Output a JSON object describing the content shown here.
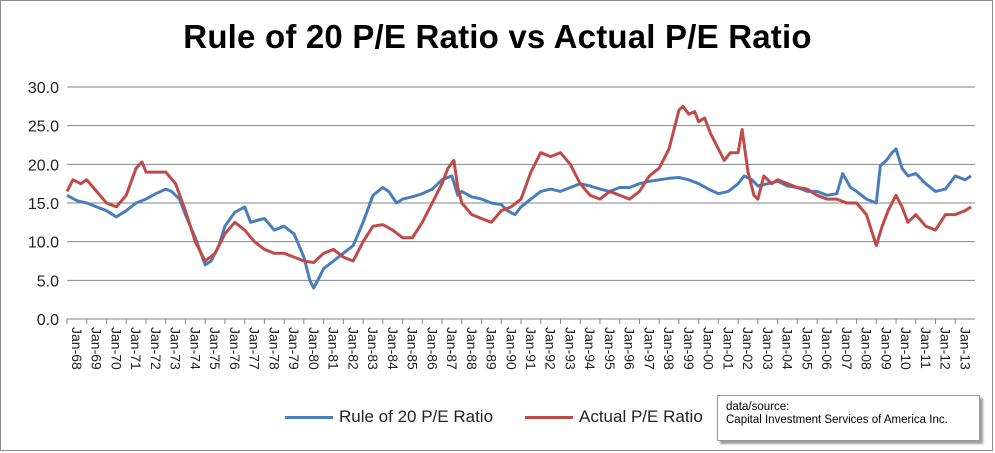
{
  "chart_data": {
    "type": "line",
    "title": "Rule of 20 P/E Ratio vs Actual P/E Ratio",
    "xlabel": "",
    "ylabel": "",
    "ylim": [
      0,
      30
    ],
    "yticks": [
      "0.0",
      "5.0",
      "10.0",
      "15.0",
      "20.0",
      "25.0",
      "30.0"
    ],
    "grid": true,
    "legend_position": "bottom",
    "x_start": "Jan-68",
    "x_end": "Jan-14",
    "xticks": [
      "Jan-68",
      "Jan-69",
      "Jan-70",
      "Jan-71",
      "Jan-72",
      "Jan-73",
      "Jan-74",
      "Jan-75",
      "Jan-76",
      "Jan-77",
      "Jan-78",
      "Jan-79",
      "Jan-80",
      "Jan-81",
      "Jan-82",
      "Jan-83",
      "Jan-84",
      "Jan-85",
      "Jan-86",
      "Jan-87",
      "Jan-88",
      "Jan-89",
      "Jan-90",
      "Jan-91",
      "Jan-92",
      "Jan-93",
      "Jan-94",
      "Jan-95",
      "Jan-96",
      "Jan-97",
      "Jan-98",
      "Jan-99",
      "Jan-00",
      "Jan-01",
      "Jan-02",
      "Jan-03",
      "Jan-04",
      "Jan-05",
      "Jan-06",
      "Jan-07",
      "Jan-08",
      "Jan-09",
      "Jan-10",
      "Jan-11",
      "Jan-12",
      "Jan-13"
    ],
    "series": [
      {
        "name": "Rule of 20 P/E Ratio",
        "color": "#4a7ebb",
        "points": [
          [
            1968.0,
            16.0
          ],
          [
            1968.5,
            15.3
          ],
          [
            1969.0,
            15.0
          ],
          [
            1969.5,
            14.5
          ],
          [
            1970.0,
            14.0
          ],
          [
            1970.5,
            13.2
          ],
          [
            1971.0,
            14.0
          ],
          [
            1971.5,
            15.0
          ],
          [
            1972.0,
            15.5
          ],
          [
            1972.5,
            16.2
          ],
          [
            1973.0,
            16.8
          ],
          [
            1973.3,
            16.5
          ],
          [
            1973.7,
            15.5
          ],
          [
            1974.0,
            13.5
          ],
          [
            1974.5,
            10.5
          ],
          [
            1975.0,
            7.0
          ],
          [
            1975.3,
            7.5
          ],
          [
            1975.7,
            9.5
          ],
          [
            1976.0,
            12.0
          ],
          [
            1976.5,
            13.8
          ],
          [
            1977.0,
            14.5
          ],
          [
            1977.3,
            12.5
          ],
          [
            1977.7,
            12.8
          ],
          [
            1978.0,
            13.0
          ],
          [
            1978.5,
            11.5
          ],
          [
            1979.0,
            12.0
          ],
          [
            1979.5,
            11.0
          ],
          [
            1980.0,
            8.0
          ],
          [
            1980.3,
            5.0
          ],
          [
            1980.5,
            4.0
          ],
          [
            1980.8,
            5.5
          ],
          [
            1981.0,
            6.5
          ],
          [
            1981.5,
            7.5
          ],
          [
            1982.0,
            8.5
          ],
          [
            1982.5,
            9.5
          ],
          [
            1983.0,
            12.5
          ],
          [
            1983.5,
            16.0
          ],
          [
            1984.0,
            17.0
          ],
          [
            1984.3,
            16.5
          ],
          [
            1984.7,
            15.0
          ],
          [
            1985.0,
            15.5
          ],
          [
            1985.5,
            15.8
          ],
          [
            1986.0,
            16.2
          ],
          [
            1986.5,
            16.8
          ],
          [
            1987.0,
            18.0
          ],
          [
            1987.5,
            18.5
          ],
          [
            1987.8,
            16.0
          ],
          [
            1988.0,
            16.5
          ],
          [
            1988.5,
            15.8
          ],
          [
            1989.0,
            15.5
          ],
          [
            1989.5,
            15.0
          ],
          [
            1990.0,
            14.8
          ],
          [
            1990.3,
            14.0
          ],
          [
            1990.7,
            13.5
          ],
          [
            1991.0,
            14.5
          ],
          [
            1991.5,
            15.5
          ],
          [
            1992.0,
            16.5
          ],
          [
            1992.5,
            16.8
          ],
          [
            1993.0,
            16.5
          ],
          [
            1993.5,
            17.0
          ],
          [
            1994.0,
            17.5
          ],
          [
            1994.5,
            17.2
          ],
          [
            1995.0,
            16.8
          ],
          [
            1995.5,
            16.5
          ],
          [
            1996.0,
            17.0
          ],
          [
            1996.5,
            17.0
          ],
          [
            1997.0,
            17.5
          ],
          [
            1997.5,
            17.8
          ],
          [
            1998.0,
            18.0
          ],
          [
            1998.5,
            18.2
          ],
          [
            1999.0,
            18.3
          ],
          [
            1999.5,
            18.0
          ],
          [
            2000.0,
            17.5
          ],
          [
            2000.5,
            16.8
          ],
          [
            2001.0,
            16.2
          ],
          [
            2001.5,
            16.5
          ],
          [
            2002.0,
            17.5
          ],
          [
            2002.3,
            18.5
          ],
          [
            2002.7,
            18.0
          ],
          [
            2003.0,
            17.2
          ],
          [
            2003.5,
            17.5
          ],
          [
            2004.0,
            17.8
          ],
          [
            2004.5,
            17.2
          ],
          [
            2005.0,
            17.0
          ],
          [
            2005.5,
            16.5
          ],
          [
            2006.0,
            16.5
          ],
          [
            2006.5,
            16.0
          ],
          [
            2007.0,
            16.2
          ],
          [
            2007.3,
            18.8
          ],
          [
            2007.7,
            17.0
          ],
          [
            2008.0,
            16.5
          ],
          [
            2008.5,
            15.5
          ],
          [
            2009.0,
            15.0
          ],
          [
            2009.2,
            19.8
          ],
          [
            2009.5,
            20.5
          ],
          [
            2009.8,
            21.5
          ],
          [
            2010.0,
            22.0
          ],
          [
            2010.3,
            19.5
          ],
          [
            2010.6,
            18.5
          ],
          [
            2011.0,
            18.8
          ],
          [
            2011.5,
            17.5
          ],
          [
            2012.0,
            16.5
          ],
          [
            2012.5,
            16.8
          ],
          [
            2013.0,
            18.5
          ],
          [
            2013.5,
            18.0
          ],
          [
            2013.8,
            18.5
          ]
        ]
      },
      {
        "name": "Actual P/E Ratio",
        "color": "#be4b48",
        "points": [
          [
            1968.0,
            16.5
          ],
          [
            1968.3,
            18.0
          ],
          [
            1968.7,
            17.5
          ],
          [
            1969.0,
            18.0
          ],
          [
            1969.5,
            16.5
          ],
          [
            1970.0,
            15.0
          ],
          [
            1970.5,
            14.5
          ],
          [
            1971.0,
            16.0
          ],
          [
            1971.5,
            19.5
          ],
          [
            1971.8,
            20.3
          ],
          [
            1972.0,
            19.0
          ],
          [
            1972.5,
            19.0
          ],
          [
            1973.0,
            19.0
          ],
          [
            1973.5,
            17.5
          ],
          [
            1974.0,
            14.0
          ],
          [
            1974.5,
            10.0
          ],
          [
            1975.0,
            7.5
          ],
          [
            1975.5,
            8.5
          ],
          [
            1976.0,
            11.0
          ],
          [
            1976.5,
            12.5
          ],
          [
            1977.0,
            11.5
          ],
          [
            1977.5,
            10.0
          ],
          [
            1978.0,
            9.0
          ],
          [
            1978.5,
            8.5
          ],
          [
            1979.0,
            8.5
          ],
          [
            1979.5,
            8.0
          ],
          [
            1980.0,
            7.5
          ],
          [
            1980.5,
            7.3
          ],
          [
            1981.0,
            8.5
          ],
          [
            1981.5,
            9.0
          ],
          [
            1982.0,
            8.0
          ],
          [
            1982.5,
            7.5
          ],
          [
            1983.0,
            10.0
          ],
          [
            1983.5,
            12.0
          ],
          [
            1984.0,
            12.2
          ],
          [
            1984.5,
            11.5
          ],
          [
            1985.0,
            10.5
          ],
          [
            1985.5,
            10.5
          ],
          [
            1986.0,
            12.5
          ],
          [
            1986.5,
            15.0
          ],
          [
            1987.0,
            17.5
          ],
          [
            1987.3,
            19.5
          ],
          [
            1987.6,
            20.5
          ],
          [
            1987.8,
            17.0
          ],
          [
            1988.0,
            15.0
          ],
          [
            1988.5,
            13.5
          ],
          [
            1989.0,
            13.0
          ],
          [
            1989.5,
            12.5
          ],
          [
            1990.0,
            14.0
          ],
          [
            1990.5,
            14.5
          ],
          [
            1991.0,
            15.5
          ],
          [
            1991.5,
            19.0
          ],
          [
            1992.0,
            21.5
          ],
          [
            1992.5,
            21.0
          ],
          [
            1993.0,
            21.5
          ],
          [
            1993.5,
            20.0
          ],
          [
            1994.0,
            17.5
          ],
          [
            1994.5,
            16.0
          ],
          [
            1995.0,
            15.5
          ],
          [
            1995.5,
            16.5
          ],
          [
            1996.0,
            16.0
          ],
          [
            1996.5,
            15.5
          ],
          [
            1997.0,
            16.5
          ],
          [
            1997.5,
            18.5
          ],
          [
            1998.0,
            19.5
          ],
          [
            1998.5,
            22.0
          ],
          [
            1998.8,
            25.0
          ],
          [
            1999.0,
            27.0
          ],
          [
            1999.2,
            27.5
          ],
          [
            1999.5,
            26.5
          ],
          [
            1999.8,
            26.8
          ],
          [
            2000.0,
            25.5
          ],
          [
            2000.3,
            26.0
          ],
          [
            2000.6,
            24.0
          ],
          [
            2001.0,
            22.0
          ],
          [
            2001.3,
            20.5
          ],
          [
            2001.6,
            21.5
          ],
          [
            2002.0,
            21.5
          ],
          [
            2002.2,
            24.5
          ],
          [
            2002.5,
            19.0
          ],
          [
            2002.8,
            16.0
          ],
          [
            2003.0,
            15.5
          ],
          [
            2003.3,
            18.5
          ],
          [
            2003.7,
            17.5
          ],
          [
            2004.0,
            18.0
          ],
          [
            2004.5,
            17.5
          ],
          [
            2005.0,
            17.0
          ],
          [
            2005.5,
            16.8
          ],
          [
            2006.0,
            16.0
          ],
          [
            2006.5,
            15.5
          ],
          [
            2007.0,
            15.5
          ],
          [
            2007.5,
            15.0
          ],
          [
            2008.0,
            15.0
          ],
          [
            2008.5,
            13.5
          ],
          [
            2009.0,
            9.5
          ],
          [
            2009.3,
            12.0
          ],
          [
            2009.6,
            14.0
          ],
          [
            2010.0,
            16.0
          ],
          [
            2010.3,
            14.5
          ],
          [
            2010.6,
            12.5
          ],
          [
            2011.0,
            13.5
          ],
          [
            2011.5,
            12.0
          ],
          [
            2012.0,
            11.5
          ],
          [
            2012.5,
            13.5
          ],
          [
            2013.0,
            13.5
          ],
          [
            2013.5,
            14.0
          ],
          [
            2013.8,
            14.5
          ]
        ]
      }
    ]
  },
  "legend": {
    "series1_label": "Rule of 20 P/E Ratio",
    "series2_label": "Actual P/E Ratio"
  },
  "source": {
    "line1": "data/source:",
    "line2": "Capital Investment Services of America Inc."
  }
}
